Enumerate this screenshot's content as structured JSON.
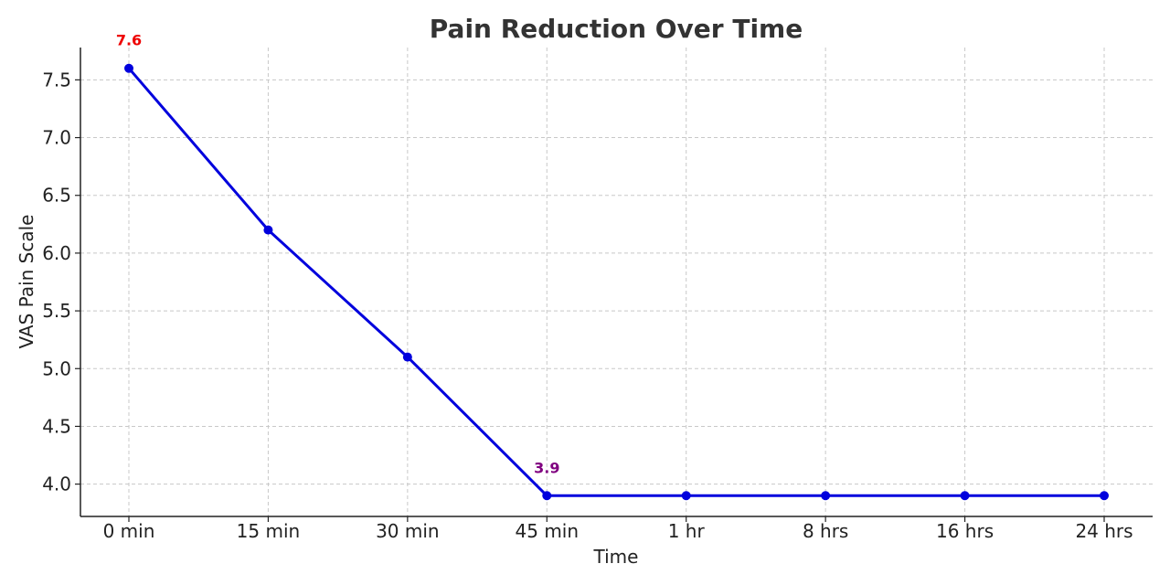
{
  "chart_data": {
    "type": "line",
    "title": "Pain Reduction Over Time",
    "xlabel": "Time",
    "ylabel": "VAS Pain Scale",
    "categories": [
      "0 min",
      "15 min",
      "30 min",
      "45 min",
      "1 hr",
      "8 hrs",
      "16 hrs",
      "24 hrs"
    ],
    "series": [
      {
        "values": [
          7.6,
          6.2,
          5.1,
          3.9,
          3.9,
          3.9,
          3.9,
          3.9
        ],
        "color": "#0000dd"
      }
    ],
    "ylim": [
      3.72,
      7.78
    ],
    "yticks": [
      4.0,
      4.5,
      5.0,
      5.5,
      6.0,
      6.5,
      7.0,
      7.5
    ],
    "ytick_labels": [
      "4.0",
      "4.5",
      "5.0",
      "5.5",
      "6.0",
      "6.5",
      "7.0",
      "7.5"
    ],
    "grid": true,
    "annotations": [
      {
        "category_index": 0,
        "text": "7.6",
        "color": "#ee0000"
      },
      {
        "category_index": 3,
        "text": "3.9",
        "color": "#800080"
      }
    ]
  }
}
